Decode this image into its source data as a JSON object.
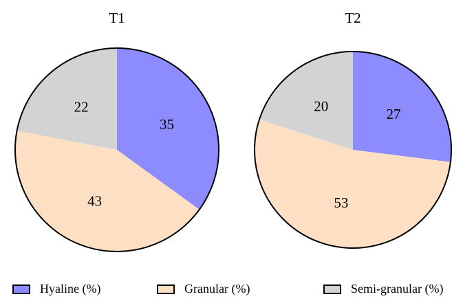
{
  "chart_data": [
    {
      "type": "pie",
      "title": "T1",
      "slices": [
        {
          "label": "Hyaline (%)",
          "value": 35
        },
        {
          "label": "Granular (%)",
          "value": 43
        },
        {
          "label": "Semi-granular (%)",
          "value": 22
        }
      ]
    },
    {
      "type": "pie",
      "title": "T2",
      "slices": [
        {
          "label": "Hyaline (%)",
          "value": 27
        },
        {
          "label": "Granular (%)",
          "value": 53
        },
        {
          "label": "Semi-granular (%)",
          "value": 20
        }
      ]
    }
  ],
  "legend": {
    "placement": "bottom",
    "items": [
      {
        "label": "Hyaline (%)",
        "color": "#8c8cff"
      },
      {
        "label": "Granular (%)",
        "color": "#fde0c4"
      },
      {
        "label": "Semi-granular (%)",
        "color": "#d3d3d3"
      }
    ]
  }
}
